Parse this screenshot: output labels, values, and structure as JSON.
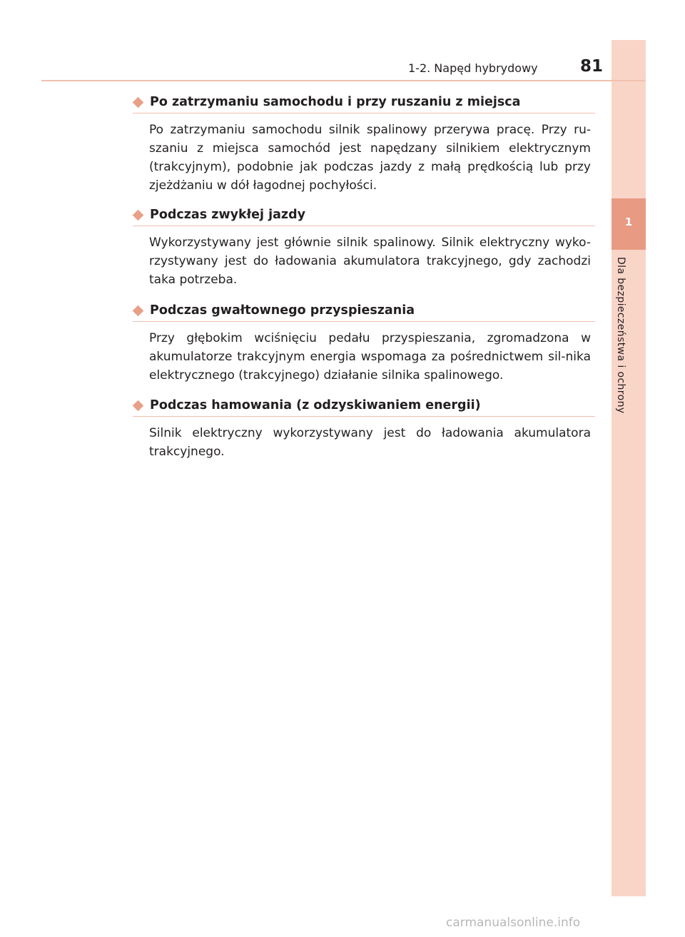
{
  "header": {
    "chapter_section": "1-2. Napęd hybrydowy",
    "page_number": "81"
  },
  "side_tab": {
    "chapter_number": "1",
    "chapter_title": "Dla bezpieczeństwa i ochrony"
  },
  "sections": [
    {
      "heading": "Po zatrzymaniu samochodu i przy ruszaniu z miejsca",
      "body": "Po zatrzymaniu samochodu silnik spalinowy przerywa pracę. Przy ru-szaniu z miejsca samochód jest napędzany silnikiem elektrycznym (trakcyjnym), podobnie jak podczas jazdy z małą prędkością lub przy zjeżdżaniu w dół łagodnej pochyłości."
    },
    {
      "heading": "Podczas zwykłej jazdy",
      "body": "Wykorzystywany jest głównie silnik spalinowy. Silnik elektryczny wyko-rzystywany jest do ładowania akumulatora trakcyjnego, gdy zachodzi taka potrzeba."
    },
    {
      "heading": "Podczas gwałtownego przyspieszania",
      "body": "Przy głębokim wciśnięciu pedału przyspieszania, zgromadzona w akumulatorze trakcyjnym energia wspomaga za pośrednictwem sil-nika elektrycznego (trakcyjnego) działanie silnika spalinowego."
    },
    {
      "heading": "Podczas hamowania (z odzyskiwaniem energii)",
      "body": "Silnik elektryczny wykorzystywany jest do ładowania akumulatora trakcyjnego."
    }
  ],
  "footer": {
    "watermark": "carmanualsonline.info"
  },
  "colors": {
    "accent": "#e8a088",
    "tab_background": "#f9d5c8",
    "tab_number_background": "#e89a83"
  }
}
